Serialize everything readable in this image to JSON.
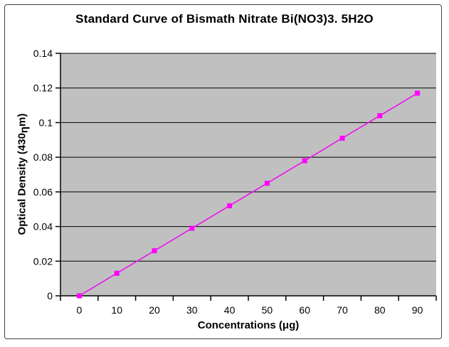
{
  "chart_data": {
    "type": "line",
    "title": "Standard Curve of Bismath Nitrate Bi(NO3)3. 5H2O",
    "categories": [
      "0",
      "10",
      "20",
      "30",
      "40",
      "50",
      "60",
      "70",
      "80",
      "90"
    ],
    "values": [
      0,
      0.013,
      0.026,
      0.039,
      0.052,
      0.065,
      0.078,
      0.091,
      0.104,
      0.117
    ],
    "xlabel": "Concentrations (μg)",
    "ylabel": "Optical Density (430ηm)",
    "ylabel_parts": {
      "pre": "Optical Density (430",
      "sub": "η",
      "post": "m)"
    },
    "ylim": [
      0,
      0.14
    ],
    "ytick_step": 0.02,
    "ytick_labels": [
      "0",
      "0.02",
      "0.04",
      "0.06",
      "0.08",
      "0.1",
      "0.12",
      "0.14"
    ],
    "grid": "horizontal-major",
    "legend": "none",
    "marker_shape": "square",
    "colors": {
      "line": "#EE12EE",
      "marker": "#FF00FF",
      "plot_background": "#C0C0C0",
      "gridline": "#000000",
      "axis": "#000000",
      "text": "#000000",
      "frame_border": "#404040",
      "page_background": "#FFFFFF"
    }
  }
}
